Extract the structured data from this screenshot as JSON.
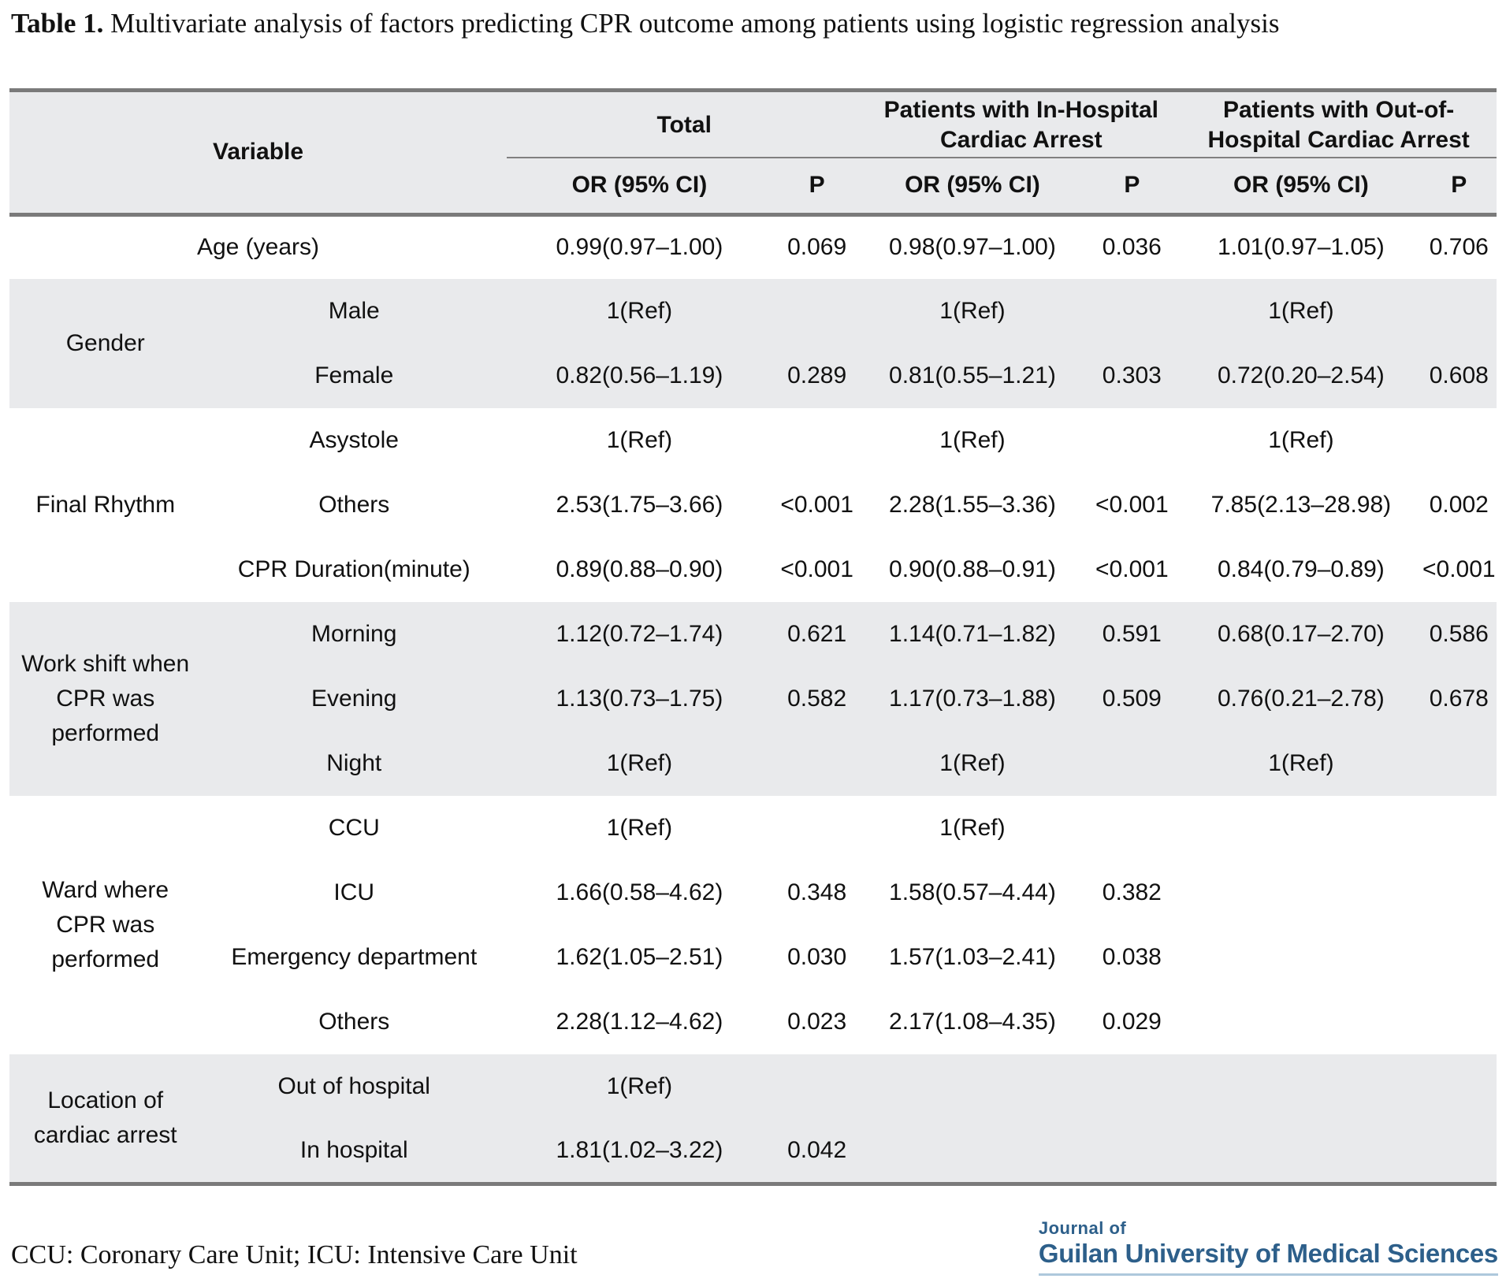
{
  "title": {
    "label": "Table 1.",
    "text": "Multivariate analysis of factors predicting CPR outcome among patients using logistic regression analysis"
  },
  "table": {
    "header": {
      "variable_label": "Variable",
      "groups": [
        {
          "label": "Total"
        },
        {
          "label": "Patients with In-Hospital Cardiac Arrest"
        },
        {
          "label": "Patients with Out-of-Hospital Cardiac Arrest"
        }
      ],
      "or_label": "OR (95% CI)",
      "p_label": "P"
    },
    "groups": [
      {
        "label": "",
        "span": true,
        "shade": false,
        "rows": [
          {
            "sub": "Age (years)",
            "cells": [
              "0.99(0.97–1.00)",
              "0.069",
              "0.98(0.97–1.00)",
              "0.036",
              "1.01(0.97–1.05)",
              "0.706"
            ]
          }
        ]
      },
      {
        "label": "Gender",
        "span": false,
        "shade": true,
        "rows": [
          {
            "sub": "Male",
            "cells": [
              "1(Ref)",
              "",
              "1(Ref)",
              "",
              "1(Ref)",
              ""
            ]
          },
          {
            "sub": "Female",
            "cells": [
              "0.82(0.56–1.19)",
              "0.289",
              "0.81(0.55–1.21)",
              "0.303",
              "0.72(0.20–2.54)",
              "0.608"
            ]
          }
        ]
      },
      {
        "label": "Final Rhythm",
        "span": false,
        "shade": false,
        "rows": [
          {
            "sub": "Asystole",
            "cells": [
              "1(Ref)",
              "",
              "1(Ref)",
              "",
              "1(Ref)",
              ""
            ]
          },
          {
            "sub": "Others",
            "cells": [
              "2.53(1.75–3.66)",
              "<0.001",
              "2.28(1.55–3.36)",
              "<0.001",
              "7.85(2.13–28.98)",
              "0.002"
            ]
          },
          {
            "sub": "CPR Duration(minute)",
            "cells": [
              "0.89(0.88–0.90)",
              "<0.001",
              "0.90(0.88–0.91)",
              "<0.001",
              "0.84(0.79–0.89)",
              "<0.001"
            ]
          }
        ]
      },
      {
        "label": "Work shift when CPR was performed",
        "span": false,
        "shade": true,
        "rows": [
          {
            "sub": "Morning",
            "cells": [
              "1.12(0.72–1.74)",
              "0.621",
              "1.14(0.71–1.82)",
              "0.591",
              "0.68(0.17–2.70)",
              "0.586"
            ]
          },
          {
            "sub": "Evening",
            "cells": [
              "1.13(0.73–1.75)",
              "0.582",
              "1.17(0.73–1.88)",
              "0.509",
              "0.76(0.21–2.78)",
              "0.678"
            ]
          },
          {
            "sub": "Night",
            "cells": [
              "1(Ref)",
              "",
              "1(Ref)",
              "",
              "1(Ref)",
              ""
            ]
          }
        ]
      },
      {
        "label": "Ward where CPR was performed",
        "span": false,
        "shade": false,
        "rows": [
          {
            "sub": "CCU",
            "cells": [
              "1(Ref)",
              "",
              "1(Ref)",
              "",
              "",
              ""
            ]
          },
          {
            "sub": "ICU",
            "cells": [
              "1.66(0.58–4.62)",
              "0.348",
              "1.58(0.57–4.44)",
              "0.382",
              "",
              ""
            ]
          },
          {
            "sub": "Emergency department",
            "cells": [
              "1.62(1.05–2.51)",
              "0.030",
              "1.57(1.03–2.41)",
              "0.038",
              "",
              ""
            ]
          },
          {
            "sub": "Others",
            "cells": [
              "2.28(1.12–4.62)",
              "0.023",
              "2.17(1.08–4.35)",
              "0.029",
              "",
              ""
            ]
          }
        ]
      },
      {
        "label": "Location of cardiac arrest",
        "span": false,
        "shade": true,
        "rows": [
          {
            "sub": "Out of hospital",
            "cells": [
              "1(Ref)",
              "",
              "",
              "",
              "",
              ""
            ]
          },
          {
            "sub": "In hospital",
            "cells": [
              "1.81(1.02–3.22)",
              "0.042",
              "",
              "",
              "",
              ""
            ]
          }
        ]
      }
    ]
  },
  "footnote": "CCU: Coronary Care Unit; ICU: Intensive Care Unit",
  "logo": {
    "line1": "Journal of",
    "line2": "Guilan University of Medical Sciences"
  },
  "colors": {
    "logo_blue": "#2d5f8a",
    "band_gray": "#e9eaec",
    "border_gray": "#7a7a7a",
    "logo_underline": "#aec8dc"
  }
}
